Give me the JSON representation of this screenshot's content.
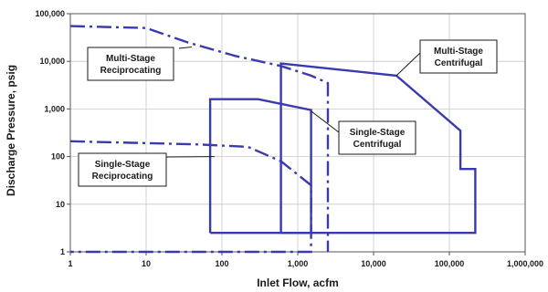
{
  "chart_data": {
    "type": "line",
    "xlabel": "Inlet Flow, acfm",
    "ylabel": "Discharge Pressure, psig",
    "x_scale": "log",
    "y_scale": "log",
    "xlim": [
      1,
      1000000
    ],
    "ylim": [
      1,
      100000
    ],
    "x_ticks": [
      {
        "value": 1,
        "label": "1"
      },
      {
        "value": 10,
        "label": "10"
      },
      {
        "value": 100,
        "label": "100"
      },
      {
        "value": 1000,
        "label": "1,000"
      },
      {
        "value": 10000,
        "label": "10,000"
      },
      {
        "value": 100000,
        "label": "100,000"
      },
      {
        "value": 1000000,
        "label": "1,000,000"
      }
    ],
    "y_ticks": [
      {
        "value": 1,
        "label": "1"
      },
      {
        "value": 10,
        "label": "10"
      },
      {
        "value": 100,
        "label": "100"
      },
      {
        "value": 1000,
        "label": "1,000"
      },
      {
        "value": 10000,
        "label": "10,000"
      },
      {
        "value": 100000,
        "label": "100,000"
      }
    ],
    "grid": true,
    "line_color": "#3a3ab0",
    "series": [
      {
        "id": "multi-stage-reciprocating",
        "label": "Multi-Stage Reciprocating",
        "label_lines": [
          "Multi-Stage",
          "Reciprocating"
        ],
        "style": "dashdot",
        "points": [
          [
            1,
            55000
          ],
          [
            10,
            50000
          ],
          [
            35,
            25000
          ],
          [
            150,
            13000
          ],
          [
            600,
            8000
          ],
          [
            1500,
            5000
          ],
          [
            2500,
            3500
          ],
          [
            2500,
            1
          ]
        ]
      },
      {
        "id": "single-stage-reciprocating",
        "label": "Single-Stage Reciprocating",
        "label_lines": [
          "Single-Stage",
          "Reciprocating"
        ],
        "style": "dashdot",
        "points": [
          [
            1,
            210
          ],
          [
            50,
            180
          ],
          [
            220,
            160
          ],
          [
            600,
            80
          ],
          [
            1500,
            25
          ],
          [
            1500,
            1
          ],
          [
            1,
            1
          ]
        ]
      },
      {
        "id": "multi-stage-centrifugal",
        "label": "Multi-Stage Centrifugal",
        "label_lines": [
          "Multi-Stage",
          "Centrifugal"
        ],
        "style": "solid",
        "points": [
          [
            600,
            2.5
          ],
          [
            600,
            9000
          ],
          [
            20000,
            5000
          ],
          [
            140000,
            350
          ],
          [
            140000,
            55
          ],
          [
            220000,
            55
          ],
          [
            220000,
            2.5
          ],
          [
            600,
            2.5
          ]
        ]
      },
      {
        "id": "single-stage-centrifugal",
        "label": "Single-Stage Centrifugal",
        "label_lines": [
          "Single-Stage",
          "Centrifugal"
        ],
        "style": "solid",
        "points": [
          [
            70,
            2.5
          ],
          [
            70,
            1600
          ],
          [
            300,
            1600
          ],
          [
            1500,
            950
          ],
          [
            1500,
            2.5
          ],
          [
            70,
            2.5
          ]
        ]
      }
    ]
  }
}
